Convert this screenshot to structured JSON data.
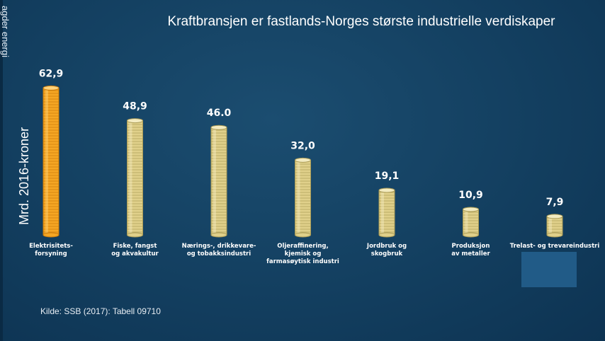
{
  "brand": "agder energi",
  "title": "Kraftbransjen er fastlands-Norges største industrielle verdiskaper",
  "source": "Kilde: SSB (2017): Tabell 09710",
  "colors": {
    "background": "#133f60",
    "highlight_coin": "#f5a623",
    "normal_coin": "#e0d08a",
    "text": "#ffffff"
  },
  "chart_data": {
    "type": "bar",
    "title": "Kraftbransjen er fastlands-Norges største industrielle verdiskaper",
    "ylabel": "Mrd. 2016-kroner",
    "xlabel": "",
    "ylim": [
      0,
      70
    ],
    "grid": false,
    "highlight_index": 0,
    "categories": [
      [
        "Elektrisitets-",
        "forsyning"
      ],
      [
        "Fiske, fangst",
        "og akvakultur"
      ],
      [
        "Nærings-, drikkevare-",
        "og tobakksindustri"
      ],
      [
        "Oljeraffinering,",
        "kjemisk og",
        "farmasøytisk industri"
      ],
      [
        "Jordbruk og",
        "skogbruk"
      ],
      [
        "Produksjon",
        "av metaller"
      ],
      [
        "Trelast- og trevareindustri"
      ]
    ],
    "values": [
      62.9,
      48.9,
      46.0,
      32.0,
      19.1,
      10.9,
      7.9
    ],
    "value_labels": [
      "62,9",
      "48,9",
      "46.0",
      "32,0",
      "19,1",
      "10,9",
      "7,9"
    ]
  }
}
